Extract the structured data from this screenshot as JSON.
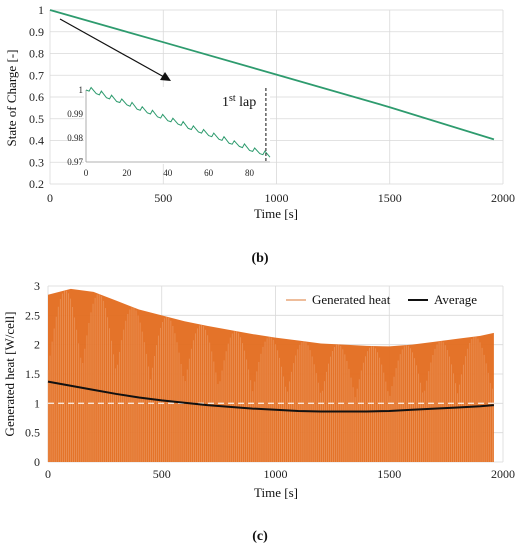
{
  "chart_data": [
    {
      "type": "line",
      "panel_label": "(b)",
      "xlabel": "Time [s]",
      "ylabel": "State of Charge [-]",
      "xlim": [
        0,
        2000
      ],
      "ylim": [
        0.2,
        1
      ],
      "x_ticks": [
        "0",
        "500",
        "1000",
        "1500",
        "2000"
      ],
      "y_ticks": [
        "0.2",
        "0.3",
        "0.4",
        "0.5",
        "0.6",
        "0.7",
        "0.8",
        "0.9",
        "1"
      ],
      "grid": true,
      "series": [
        {
          "x": [
            0,
            500,
            1000,
            1500,
            1960
          ],
          "values": [
            1.0,
            0.852,
            0.703,
            0.553,
            0.405
          ],
          "color": "#2e9b6e"
        }
      ],
      "inset": {
        "xlim": [
          0,
          90
        ],
        "ylim": [
          0.97,
          1
        ],
        "x_ticks": [
          "0",
          "20",
          "40",
          "60",
          "80"
        ],
        "y_ticks": [
          "0.97",
          "0.98",
          "0.99",
          "1"
        ],
        "lap_label": "1",
        "lap_label_sup": "st",
        "lap_label_suffix": " lap",
        "lap_marker_x": 88,
        "series": [
          {
            "x": [
              0,
              5,
              10,
              15,
              20,
              25,
              30,
              35,
              40,
              45,
              50,
              55,
              60,
              65,
              70,
              75,
              80,
              85,
              90
            ],
            "values": [
              1.0,
              0.9985,
              0.9968,
              0.9952,
              0.9938,
              0.992,
              0.9905,
              0.9888,
              0.9872,
              0.9858,
              0.984,
              0.9825,
              0.981,
              0.9795,
              0.9778,
              0.9765,
              0.9748,
              0.9735,
              0.972
            ],
            "color": "#2e9b6e"
          }
        ]
      }
    },
    {
      "type": "area",
      "panel_label": "(c)",
      "xlabel": "Time [s]",
      "ylabel": "Generated heat [W/cell]",
      "xlim": [
        0,
        2000
      ],
      "ylim": [
        0,
        3
      ],
      "x_ticks": [
        "0",
        "500",
        "1000",
        "1500",
        "2000"
      ],
      "y_ticks": [
        "0",
        "0.5",
        "1",
        "1.5",
        "2",
        "2.5",
        "3"
      ],
      "grid": true,
      "legend_position": "top-right",
      "reference_line": 1.0,
      "series": [
        {
          "name": "Generated heat",
          "color": "#e36c1e",
          "x": [
            0,
            100,
            200,
            300,
            400,
            500,
            600,
            700,
            800,
            900,
            1000,
            1100,
            1200,
            1300,
            1400,
            1500,
            1600,
            1700,
            1800,
            1900,
            1960
          ],
          "values": [
            2.85,
            2.95,
            2.9,
            2.75,
            2.6,
            2.5,
            2.4,
            2.32,
            2.25,
            2.18,
            2.12,
            2.07,
            2.02,
            2.0,
            1.98,
            1.97,
            2.0,
            2.05,
            2.1,
            2.15,
            2.2
          ]
        },
        {
          "name": "Average",
          "color": "#111111",
          "x": [
            0,
            100,
            200,
            300,
            400,
            500,
            600,
            700,
            800,
            900,
            1000,
            1100,
            1200,
            1300,
            1400,
            1500,
            1600,
            1700,
            1800,
            1900,
            1960
          ],
          "values": [
            1.37,
            1.3,
            1.23,
            1.16,
            1.1,
            1.05,
            1.01,
            0.97,
            0.94,
            0.91,
            0.89,
            0.87,
            0.86,
            0.86,
            0.86,
            0.87,
            0.89,
            0.91,
            0.93,
            0.95,
            0.97
          ]
        }
      ]
    }
  ]
}
